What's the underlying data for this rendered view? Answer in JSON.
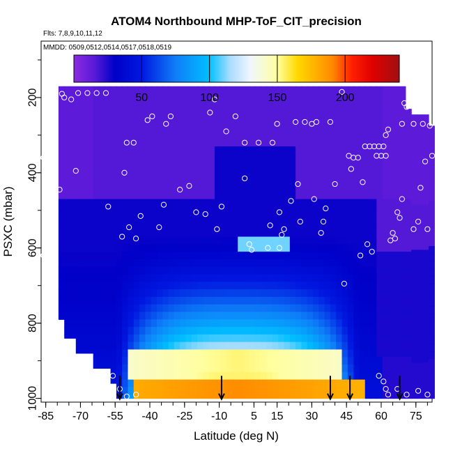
{
  "chart_data": {
    "type": "heatmap",
    "title": "ATOM4 Northbound MHP-ToF_CIT_precision",
    "flights_label": "Flts: 7,8,9,10,11,12",
    "dates_label": "MMDD: 0509,0512,0514,0517,0518,0519",
    "xlabel": "Latitude (deg N)",
    "ylabel": "PSXC (mbar)",
    "xlim": [
      -87,
      82
    ],
    "ylim": [
      1010,
      50
    ],
    "x_tick_labels": [
      "-85",
      "-70",
      "-55",
      "-40",
      "-25",
      "-10",
      "5",
      "15",
      "30",
      "45",
      "60",
      "75"
    ],
    "x_tick_values": [
      -85,
      -70,
      -55,
      -40,
      -25,
      -10,
      5,
      15,
      30,
      45,
      60,
      75
    ],
    "y_tick_labels": [
      "200",
      "400",
      "600",
      "800",
      "1000"
    ],
    "y_tick_values": [
      200,
      400,
      600,
      800,
      1000
    ],
    "colorbar": {
      "min": 0,
      "max": 240,
      "tick_labels": [
        "50",
        "100",
        "150",
        "200"
      ],
      "tick_values": [
        50,
        100,
        150,
        200
      ],
      "stops": [
        {
          "v": 0,
          "c": "#8a2be2"
        },
        {
          "v": 15,
          "c": "#5a1ad8"
        },
        {
          "v": 30,
          "c": "#0000c8"
        },
        {
          "v": 50,
          "c": "#0018e0"
        },
        {
          "v": 75,
          "c": "#0e7ef8"
        },
        {
          "v": 100,
          "c": "#00c0ff"
        },
        {
          "v": 115,
          "c": "#a8dcff"
        },
        {
          "v": 130,
          "c": "#f0f6ff"
        },
        {
          "v": 150,
          "c": "#ffffa0"
        },
        {
          "v": 165,
          "c": "#ffd800"
        },
        {
          "v": 190,
          "c": "#ff8c00"
        },
        {
          "v": 205,
          "c": "#ff2000"
        },
        {
          "v": 220,
          "c": "#e00000"
        },
        {
          "v": 240,
          "c": "#a01010"
        }
      ]
    },
    "profile_markers_lat": [
      -53,
      -9,
      38,
      46.5,
      68
    ],
    "sample_points": [
      {
        "lat": -85,
        "p": 215
      },
      {
        "lat": -82,
        "p": 215
      },
      {
        "lat": -78,
        "p": 190
      },
      {
        "lat": -74,
        "p": 205
      },
      {
        "lat": -71,
        "p": 188
      },
      {
        "lat": -67,
        "p": 188
      },
      {
        "lat": -63,
        "p": 188
      },
      {
        "lat": -59,
        "p": 188
      },
      {
        "lat": -72,
        "p": 395
      },
      {
        "lat": -79,
        "p": 445
      },
      {
        "lat": -58,
        "p": 490
      },
      {
        "lat": -51,
        "p": 400
      },
      {
        "lat": -50,
        "p": 320
      },
      {
        "lat": -47,
        "p": 320
      },
      {
        "lat": -52,
        "p": 570
      },
      {
        "lat": -49,
        "p": 545
      },
      {
        "lat": -46,
        "p": 575
      },
      {
        "lat": -44,
        "p": 515
      },
      {
        "lat": -41,
        "p": 260
      },
      {
        "lat": -39,
        "p": 250
      },
      {
        "lat": -36,
        "p": 545
      },
      {
        "lat": -34,
        "p": 485
      },
      {
        "lat": -33,
        "p": 270
      },
      {
        "lat": -31,
        "p": 250
      },
      {
        "lat": -27,
        "p": 445
      },
      {
        "lat": -23,
        "p": 435
      },
      {
        "lat": -20,
        "p": 505
      },
      {
        "lat": -16,
        "p": 510
      },
      {
        "lat": -14,
        "p": 240
      },
      {
        "lat": -12,
        "p": 205
      },
      {
        "lat": -11,
        "p": 550
      },
      {
        "lat": -9,
        "p": 490
      },
      {
        "lat": -7,
        "p": 290
      },
      {
        "lat": -3,
        "p": 250
      },
      {
        "lat": 1,
        "p": 415
      },
      {
        "lat": 1,
        "p": 320
      },
      {
        "lat": 3,
        "p": 590
      },
      {
        "lat": 4,
        "p": 605
      },
      {
        "lat": 7,
        "p": 320
      },
      {
        "lat": 11,
        "p": 600
      },
      {
        "lat": 12,
        "p": 540
      },
      {
        "lat": 13,
        "p": 320
      },
      {
        "lat": 15,
        "p": 270
      },
      {
        "lat": 16,
        "p": 505
      },
      {
        "lat": 16,
        "p": 600
      },
      {
        "lat": 17,
        "p": 565
      },
      {
        "lat": 18,
        "p": 550
      },
      {
        "lat": 21,
        "p": 475
      },
      {
        "lat": 23,
        "p": 265
      },
      {
        "lat": 24,
        "p": 430
      },
      {
        "lat": 25,
        "p": 530
      },
      {
        "lat": 27,
        "p": 265
      },
      {
        "lat": 30,
        "p": 270
      },
      {
        "lat": 31,
        "p": 470
      },
      {
        "lat": 32,
        "p": 265
      },
      {
        "lat": 34,
        "p": 560
      },
      {
        "lat": 35,
        "p": 530
      },
      {
        "lat": 36,
        "p": 495
      },
      {
        "lat": 38,
        "p": 265
      },
      {
        "lat": 40,
        "p": 430
      },
      {
        "lat": 43,
        "p": 185
      },
      {
        "lat": 44,
        "p": 695
      },
      {
        "lat": 46,
        "p": 355
      },
      {
        "lat": 47,
        "p": 390
      },
      {
        "lat": 48,
        "p": 360
      },
      {
        "lat": 50,
        "p": 360
      },
      {
        "lat": 51,
        "p": 620
      },
      {
        "lat": 52,
        "p": 425
      },
      {
        "lat": 53,
        "p": 330
      },
      {
        "lat": 54,
        "p": 590
      },
      {
        "lat": 55,
        "p": 330
      },
      {
        "lat": 56,
        "p": 610
      },
      {
        "lat": 57,
        "p": 330
      },
      {
        "lat": 58,
        "p": 355
      },
      {
        "lat": 59,
        "p": 330
      },
      {
        "lat": 60,
        "p": 355
      },
      {
        "lat": 61,
        "p": 330
      },
      {
        "lat": 62,
        "p": 300
      },
      {
        "lat": 62,
        "p": 355
      },
      {
        "lat": 63,
        "p": 285
      },
      {
        "lat": 64,
        "p": 580
      },
      {
        "lat": 65,
        "p": 560
      },
      {
        "lat": 66,
        "p": 575
      },
      {
        "lat": 67,
        "p": 505
      },
      {
        "lat": 68,
        "p": 520
      },
      {
        "lat": 69,
        "p": 470
      },
      {
        "lat": 69,
        "p": 270
      },
      {
        "lat": 70,
        "p": 215
      },
      {
        "lat": 71,
        "p": 225
      },
      {
        "lat": 72,
        "p": 205
      },
      {
        "lat": 73,
        "p": 220
      },
      {
        "lat": 74,
        "p": 550
      },
      {
        "lat": 74,
        "p": 270
      },
      {
        "lat": 75,
        "p": 215
      },
      {
        "lat": 76,
        "p": 530
      },
      {
        "lat": 77,
        "p": 440
      },
      {
        "lat": 78,
        "p": 270
      },
      {
        "lat": 79,
        "p": 370
      },
      {
        "lat": 80,
        "p": 550
      },
      {
        "lat": 81,
        "p": 275
      },
      {
        "lat": 82,
        "p": 355
      },
      {
        "lat": 59,
        "p": 940
      },
      {
        "lat": 61,
        "p": 955
      },
      {
        "lat": 62,
        "p": 975
      },
      {
        "lat": 63,
        "p": 990
      },
      {
        "lat": 67,
        "p": 975
      },
      {
        "lat": 71,
        "p": 990
      },
      {
        "lat": 76,
        "p": 980
      },
      {
        "lat": 80,
        "p": 990
      },
      {
        "lat": -56,
        "p": 940
      },
      {
        "lat": -53,
        "p": 975
      },
      {
        "lat": -50,
        "p": 995
      },
      {
        "lat": -46,
        "p": 990
      },
      {
        "lat": -79,
        "p": 810
      },
      {
        "lat": -86,
        "p": 620
      },
      {
        "lat": -86,
        "p": 360
      },
      {
        "lat": -77,
        "p": 200
      }
    ]
  }
}
